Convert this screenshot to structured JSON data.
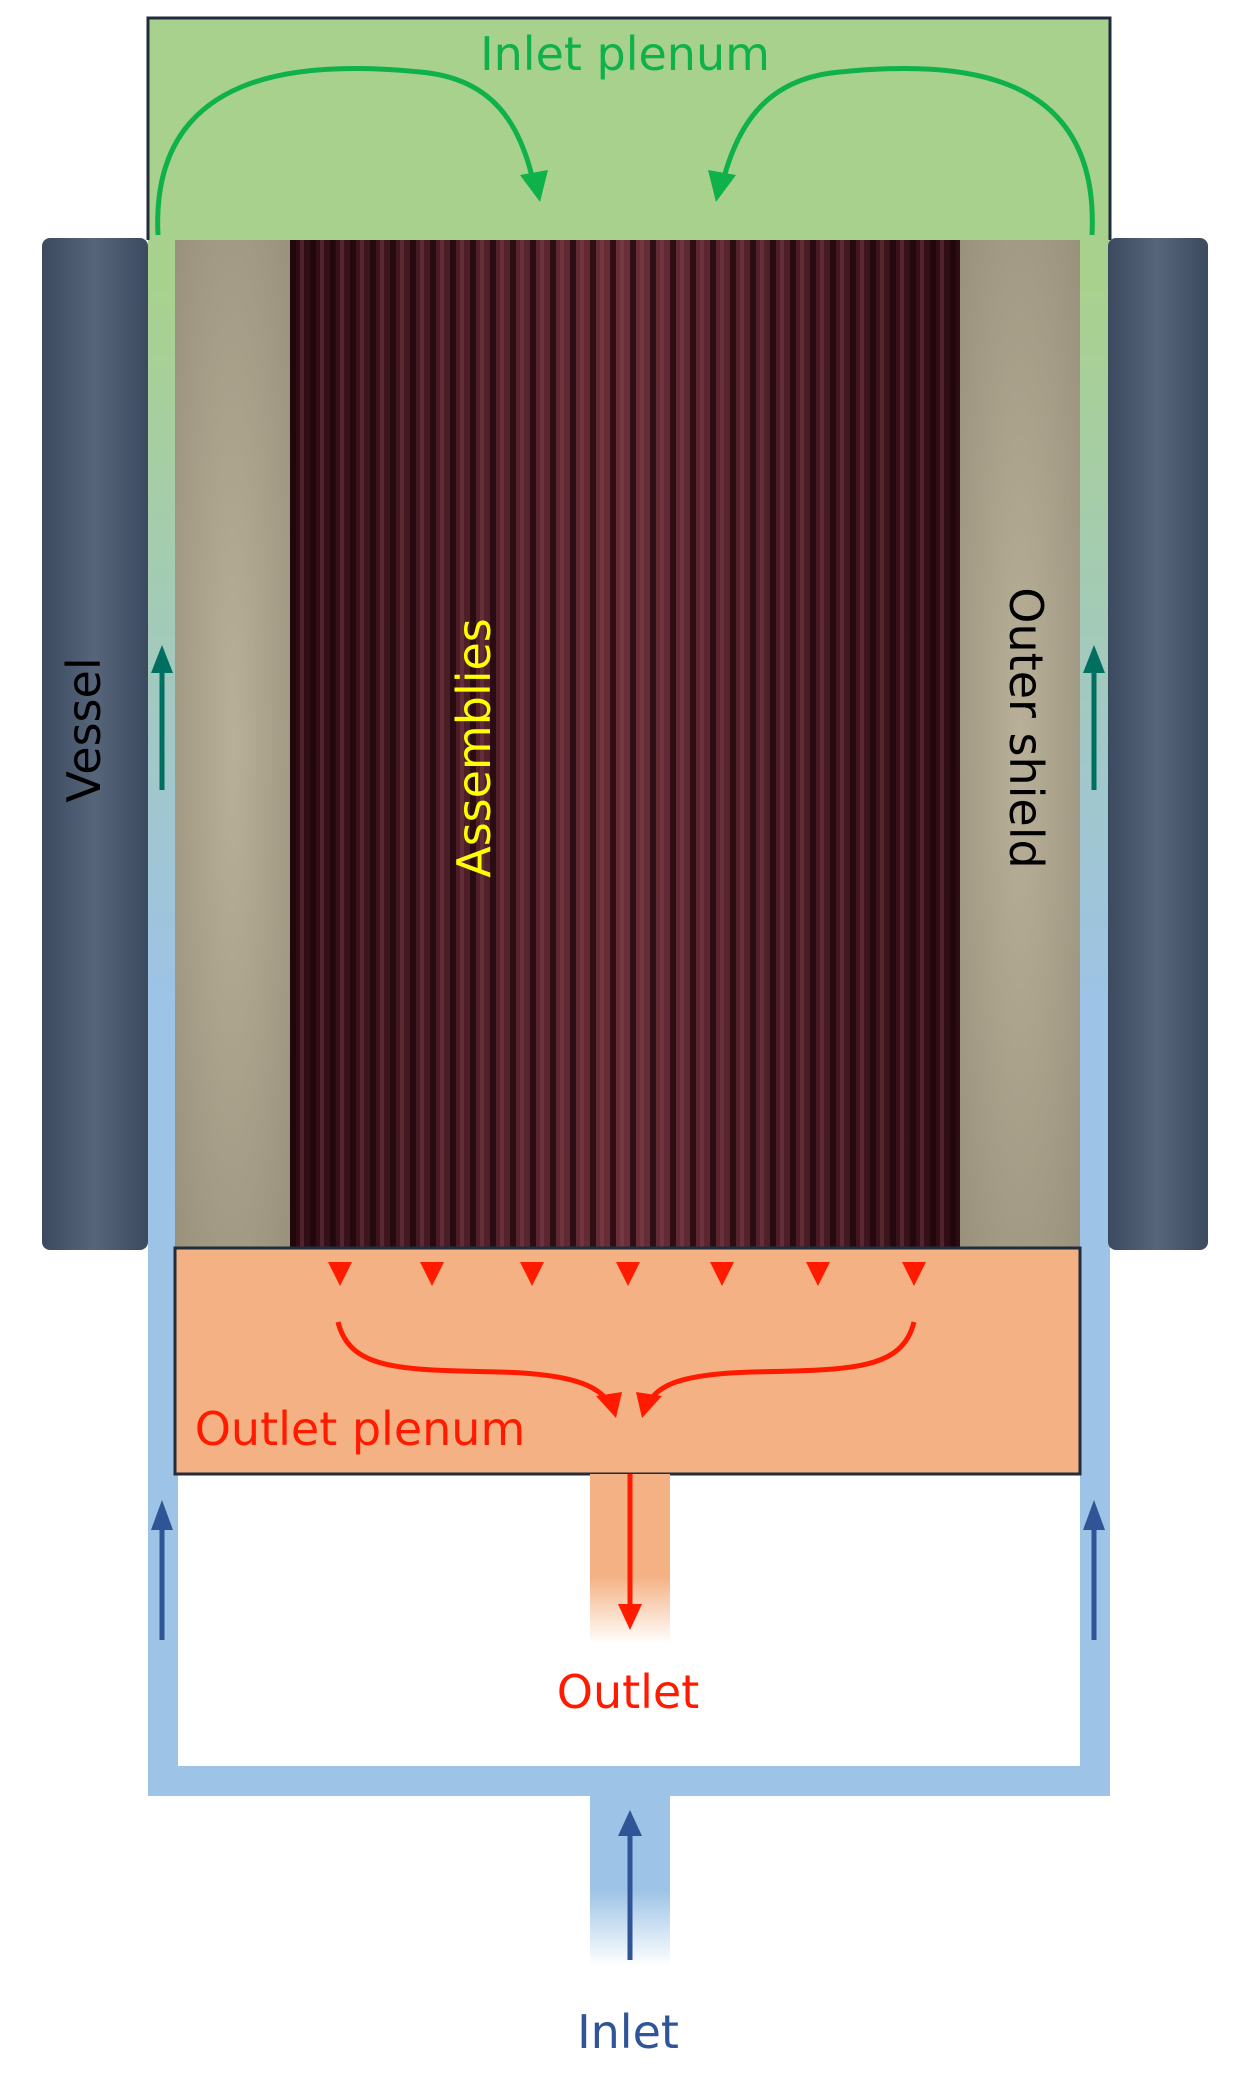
{
  "labels": {
    "inlet_plenum": "Inlet plenum",
    "vessel": "Vessel",
    "assemblies": "Assemblies",
    "outer_shield": "Outer shield",
    "outlet_plenum": "Outlet plenum",
    "outlet": "Outlet",
    "inlet": "Inlet"
  },
  "colors": {
    "inlet_green": "#0fb14a",
    "flow_red": "#ff1a00",
    "inlet_blue": "#2f5597",
    "downcomer_blue": "#9dc3e6",
    "plenum_green": "#a9d18e",
    "outlet_plenum": "#f4b183",
    "vessel_dark": "#44546a",
    "shield": "#a8a08a",
    "assembly_dark": "#3a1018",
    "frame": "#1f2d3d",
    "assemblies_text": "#ffff00",
    "upward_teal": "#006f5f"
  },
  "icons": {
    "flow_arrow": "arrow-icon"
  }
}
